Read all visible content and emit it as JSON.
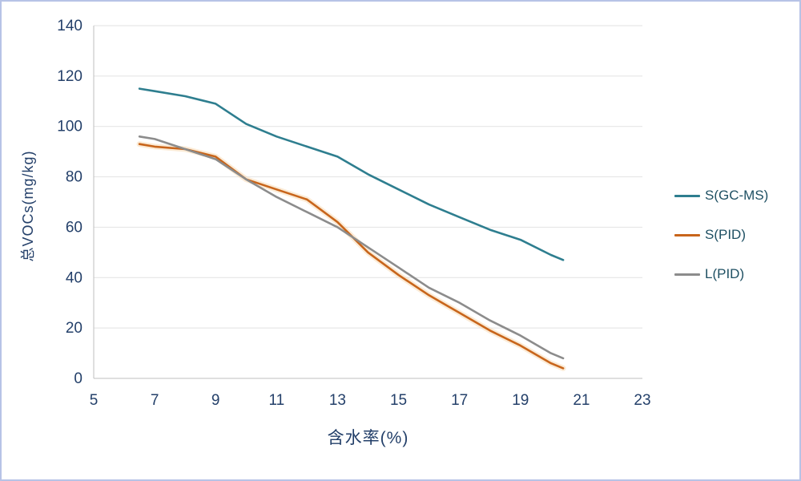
{
  "chart_data": {
    "type": "line",
    "title": "",
    "xlabel": "含水率(%)",
    "ylabel": "总VOCs(mg/kg)",
    "xlim": [
      5,
      23
    ],
    "ylim": [
      0,
      140
    ],
    "xticks": [
      5,
      7,
      9,
      11,
      13,
      15,
      17,
      19,
      21,
      23
    ],
    "yticks": [
      0,
      20,
      40,
      60,
      80,
      100,
      120,
      140
    ],
    "grid": "horizontal",
    "legend_position": "right",
    "x": [
      6.5,
      7,
      8,
      9,
      10,
      11,
      12,
      13,
      14,
      15,
      16,
      17,
      18,
      19,
      20,
      20.4
    ],
    "series": [
      {
        "name": "S(GC-MS)",
        "color": "#2e7e8f",
        "values": [
          115,
          114,
          112,
          109,
          101,
          96,
          92,
          88,
          81,
          75,
          69,
          64,
          59,
          55,
          49,
          47
        ]
      },
      {
        "name": "S(PID)",
        "color": "#c8651b",
        "halo_color": "#f8ddba",
        "values": [
          93,
          92,
          91,
          88,
          79,
          75,
          71,
          62,
          50,
          41,
          33,
          26,
          19,
          13,
          6,
          4
        ]
      },
      {
        "name": "L(PID)",
        "color": "#8c8c8c",
        "values": [
          96,
          95,
          91,
          87,
          79,
          72,
          66,
          60,
          52,
          44,
          36,
          30,
          23,
          17,
          10,
          8
        ]
      }
    ],
    "colors": {
      "axis_text": "#24406a",
      "gridline": "#e2e2e2",
      "axis_line": "#bfbfbf",
      "frame_border": "#b7c3e6"
    }
  }
}
